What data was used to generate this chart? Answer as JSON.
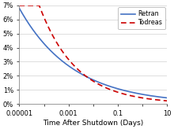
{
  "title": "",
  "xlabel": "Time After Shutdown (Days)",
  "ylabel": "",
  "xlim_log": [
    -5,
    1
  ],
  "ylim": [
    0,
    0.07
  ],
  "yticks": [
    0,
    0.01,
    0.02,
    0.03,
    0.04,
    0.05,
    0.06,
    0.07
  ],
  "ytick_labels": [
    "0%",
    "1%",
    "2%",
    "3%",
    "4%",
    "5%",
    "6%",
    "7%"
  ],
  "xtick_vals": [
    1e-05,
    0.0001,
    0.001,
    0.01,
    0.1,
    1,
    10
  ],
  "xtick_labels": [
    "0.00001",
    "",
    "0.001",
    "",
    "0.1",
    "",
    "10"
  ],
  "retran_color": "#4472C4",
  "todreas_color": "#CC0000",
  "background": "#FFFFFF",
  "legend_labels": [
    "Retran",
    "Todreas"
  ],
  "figsize": [
    2.2,
    1.64
  ],
  "dpi": 100,
  "retran_A": 0.066,
  "retran_n": 0.2,
  "todreas_A": 0.115,
  "todreas_n": 0.29
}
